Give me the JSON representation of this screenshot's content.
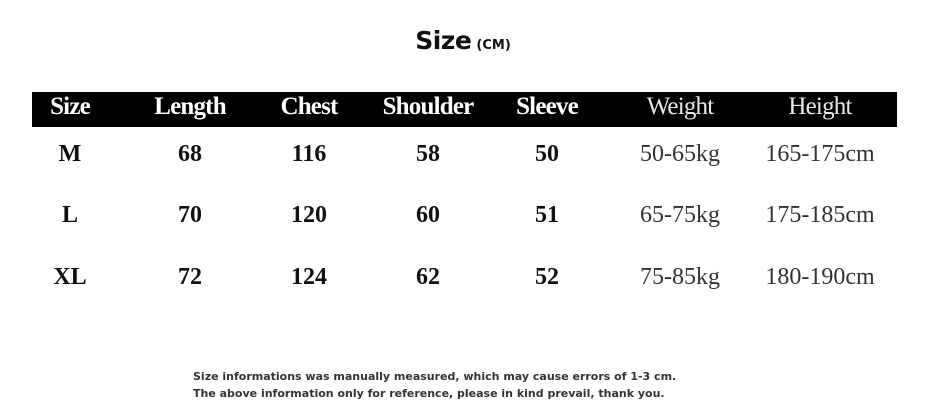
{
  "title": {
    "main": "Size",
    "unit": "(CM)"
  },
  "table": {
    "headers": [
      "Size",
      "Length",
      "Chest",
      "Shoulder",
      "Sleeve",
      "Weight",
      "Height"
    ],
    "rows": [
      [
        "M",
        "68",
        "116",
        "58",
        "50",
        "50-65kg",
        "165-175cm"
      ],
      [
        "L",
        "70",
        "120",
        "60",
        "51",
        "65-75kg",
        "175-185cm"
      ],
      [
        "XL",
        "72",
        "124",
        "62",
        "52",
        "75-85kg",
        "180-190cm"
      ]
    ]
  },
  "notes": [
    "Size informations was manually measured, which may cause errors of 1-3 cm.",
    "The above information only for reference, please in kind prevail, thank you."
  ],
  "colors": {
    "header_bg": "#000000",
    "header_text": "#ffffff",
    "body_text": "#111111"
  }
}
